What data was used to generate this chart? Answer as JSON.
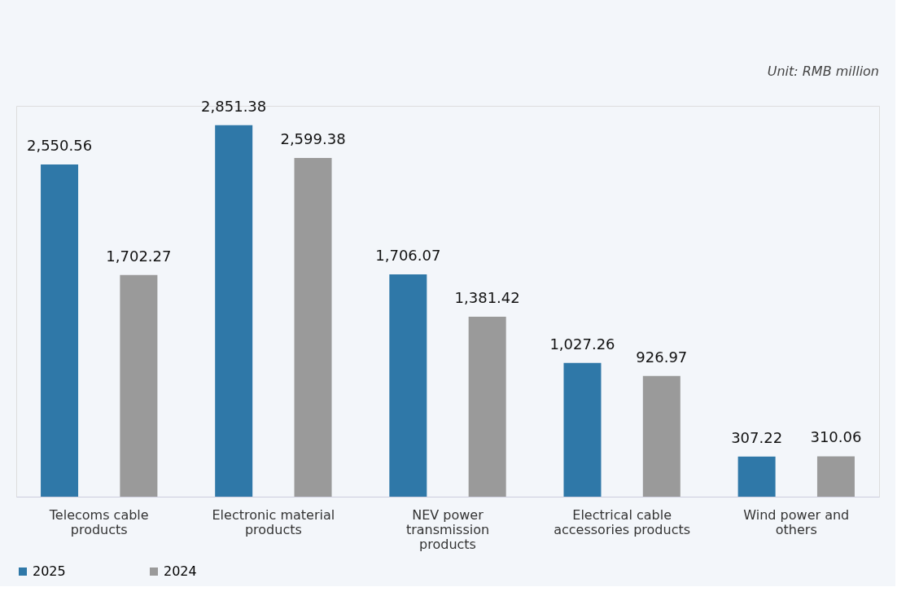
{
  "chart_data": {
    "type": "bar",
    "categories": [
      "Telecoms cable products",
      "Electronic material products",
      "NEV power transmission products",
      "Electrical cable accessories products",
      "Wind power and others"
    ],
    "series": [
      {
        "name": "2025",
        "color": "#2f78a8",
        "values": [
          2550.56,
          2851.38,
          1706.07,
          1027.26,
          307.22
        ],
        "value_labels": [
          "2,550.56",
          "2,851.38",
          "1,706.07",
          "1,027.26",
          "307.22"
        ]
      },
      {
        "name": "2024",
        "color": "#9a9a9a",
        "values": [
          1702.27,
          2599.38,
          1381.42,
          926.97,
          310.06
        ],
        "value_labels": [
          "1,702.27",
          "2,599.38",
          "1,381.42",
          "926.97",
          "310.06"
        ]
      }
    ],
    "legend": "bottom",
    "grid": false,
    "annotations": [
      "Unit: RMB million"
    ]
  }
}
